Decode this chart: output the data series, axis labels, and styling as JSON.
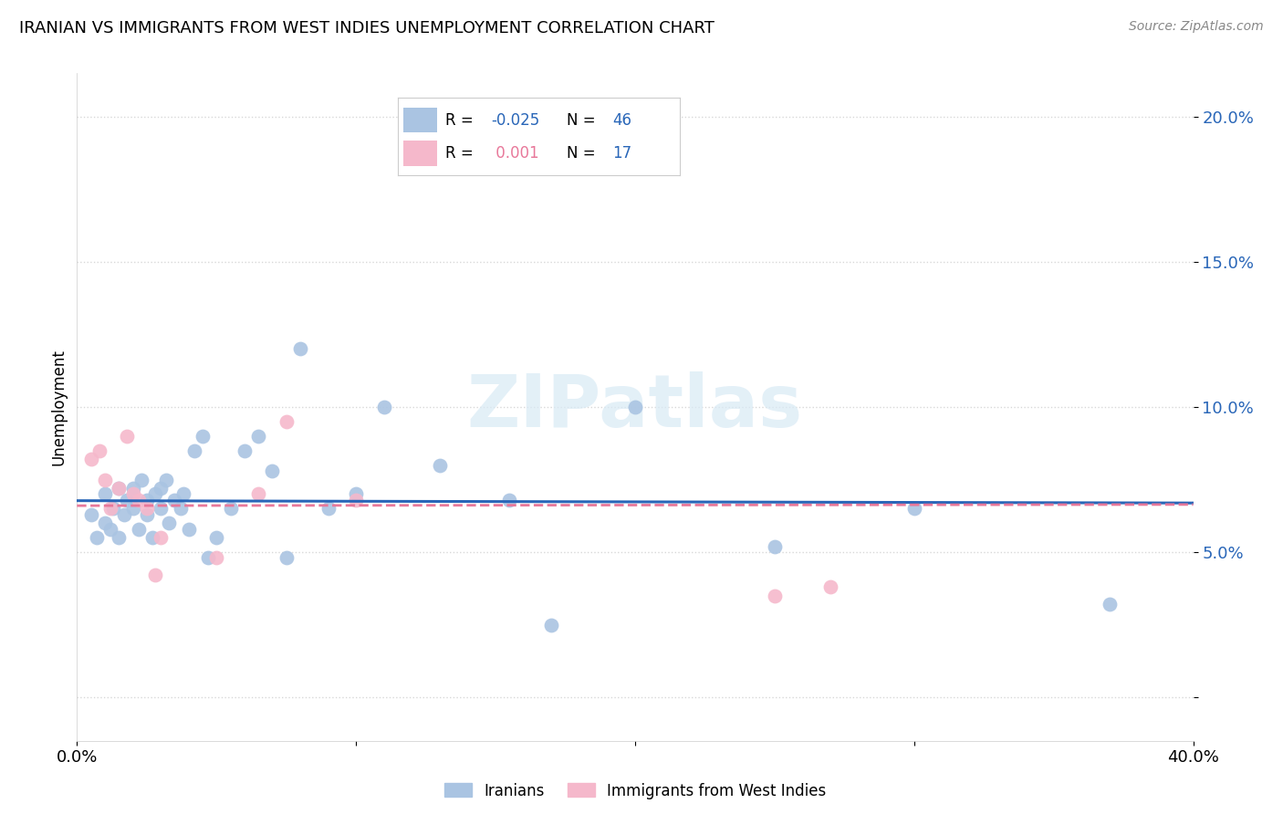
{
  "title": "IRANIAN VS IMMIGRANTS FROM WEST INDIES UNEMPLOYMENT CORRELATION CHART",
  "source": "Source: ZipAtlas.com",
  "ylabel": "Unemployment",
  "yticks": [
    0.0,
    0.05,
    0.1,
    0.15,
    0.2
  ],
  "ytick_labels": [
    "",
    "5.0%",
    "10.0%",
    "15.0%",
    "20.0%"
  ],
  "xmin": 0.0,
  "xmax": 0.4,
  "ymin": -0.015,
  "ymax": 0.215,
  "iranians_R": "-0.025",
  "iranians_N": "46",
  "westindies_R": "0.001",
  "westindies_N": "17",
  "iranian_color": "#aac4e2",
  "westindies_color": "#f5b8cb",
  "trend_iranian_color": "#2966b8",
  "trend_westindies_color": "#e8789a",
  "iranians_x": [
    0.005,
    0.007,
    0.01,
    0.01,
    0.012,
    0.013,
    0.015,
    0.015,
    0.017,
    0.018,
    0.02,
    0.02,
    0.022,
    0.023,
    0.025,
    0.025,
    0.027,
    0.028,
    0.03,
    0.03,
    0.032,
    0.033,
    0.035,
    0.037,
    0.038,
    0.04,
    0.042,
    0.045,
    0.047,
    0.05,
    0.055,
    0.06,
    0.065,
    0.07,
    0.075,
    0.08,
    0.09,
    0.1,
    0.11,
    0.13,
    0.155,
    0.17,
    0.2,
    0.25,
    0.3,
    0.37
  ],
  "iranians_y": [
    0.063,
    0.055,
    0.06,
    0.07,
    0.058,
    0.065,
    0.055,
    0.072,
    0.063,
    0.068,
    0.065,
    0.072,
    0.058,
    0.075,
    0.068,
    0.063,
    0.055,
    0.07,
    0.065,
    0.072,
    0.075,
    0.06,
    0.068,
    0.065,
    0.07,
    0.058,
    0.085,
    0.09,
    0.048,
    0.055,
    0.065,
    0.085,
    0.09,
    0.078,
    0.048,
    0.12,
    0.065,
    0.07,
    0.1,
    0.08,
    0.068,
    0.025,
    0.1,
    0.052,
    0.065,
    0.032
  ],
  "westindies_x": [
    0.005,
    0.008,
    0.01,
    0.012,
    0.015,
    0.018,
    0.02,
    0.022,
    0.025,
    0.028,
    0.03,
    0.05,
    0.065,
    0.075,
    0.1,
    0.25,
    0.27
  ],
  "westindies_y": [
    0.082,
    0.085,
    0.075,
    0.065,
    0.072,
    0.09,
    0.07,
    0.068,
    0.065,
    0.042,
    0.055,
    0.048,
    0.07,
    0.095,
    0.068,
    0.035,
    0.038
  ],
  "background_color": "#ffffff",
  "grid_color": "#d8d8d8",
  "watermark": "ZIPatlas"
}
